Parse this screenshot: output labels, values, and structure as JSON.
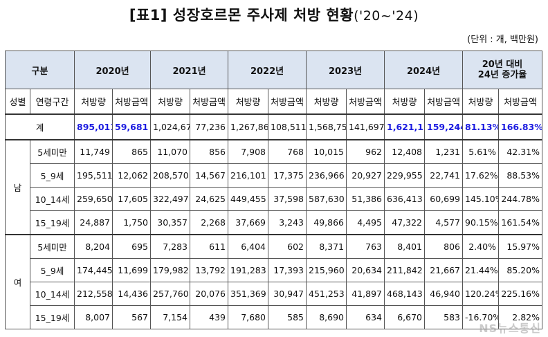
{
  "title_main": "[표1] 성장호르몬 주사제 처방 현황",
  "title_period": "('20~'24)",
  "unit_note": "(단위 : 개, 백만원)",
  "header": {
    "category": "구분",
    "years": [
      "2020년",
      "2021년",
      "2022년",
      "2023년",
      "2024년"
    ],
    "growth_line1": "20년 대비",
    "growth_line2": "24년 증가율",
    "sex": "성별",
    "age_group": "연령구간",
    "count": "처방량",
    "amount": "처방금액"
  },
  "total": {
    "label": "계",
    "cells": [
      "895,011",
      "59,681",
      "1,024,673",
      "77,236",
      "1,267,868",
      "108,511",
      "1,568,751",
      "141,697",
      "1,621,154",
      "159,244",
      "81.13%",
      "166.83%"
    ]
  },
  "groups": [
    {
      "sex": "남",
      "rows": [
        {
          "age": "5세미만",
          "cells": [
            "11,749",
            "865",
            "11,070",
            "856",
            "7,908",
            "768",
            "10,015",
            "962",
            "12,408",
            "1,231",
            "5.61%",
            "42.31%"
          ]
        },
        {
          "age": "5_9세",
          "cells": [
            "195,511",
            "12,062",
            "208,570",
            "14,567",
            "216,101",
            "17,375",
            "236,966",
            "20,927",
            "229,955",
            "22,741",
            "17.62%",
            "88.53%"
          ]
        },
        {
          "age": "10_14세",
          "cells": [
            "259,650",
            "17,605",
            "322,497",
            "24,625",
            "449,455",
            "37,598",
            "587,630",
            "51,386",
            "636,413",
            "60,699",
            "145.10%",
            "244.78%"
          ]
        },
        {
          "age": "15_19세",
          "cells": [
            "24,887",
            "1,750",
            "30,357",
            "2,268",
            "37,669",
            "3,243",
            "49,866",
            "4,495",
            "47,322",
            "4,577",
            "90.15%",
            "161.54%"
          ]
        }
      ]
    },
    {
      "sex": "여",
      "rows": [
        {
          "age": "5세미만",
          "cells": [
            "8,204",
            "695",
            "7,283",
            "611",
            "6,404",
            "602",
            "8,371",
            "763",
            "8,401",
            "806",
            "2.40%",
            "15.97%"
          ]
        },
        {
          "age": "5_9세",
          "cells": [
            "174,445",
            "11,699",
            "179,982",
            "13,792",
            "191,283",
            "17,393",
            "215,960",
            "20,634",
            "211,842",
            "21,667",
            "21.44%",
            "85.20%"
          ]
        },
        {
          "age": "10_14세",
          "cells": [
            "212,558",
            "14,436",
            "257,760",
            "20,076",
            "351,369",
            "30,947",
            "451,253",
            "41,897",
            "468,143",
            "46,940",
            "120.24%",
            "225.16%"
          ]
        },
        {
          "age": "15_19세",
          "cells": [
            "8,007",
            "567",
            "7,154",
            "439",
            "7,680",
            "585",
            "8,690",
            "634",
            "6,670",
            "583",
            "-16.70%",
            "2.82%"
          ]
        }
      ]
    }
  ],
  "watermark": "NS뉴스통신"
}
